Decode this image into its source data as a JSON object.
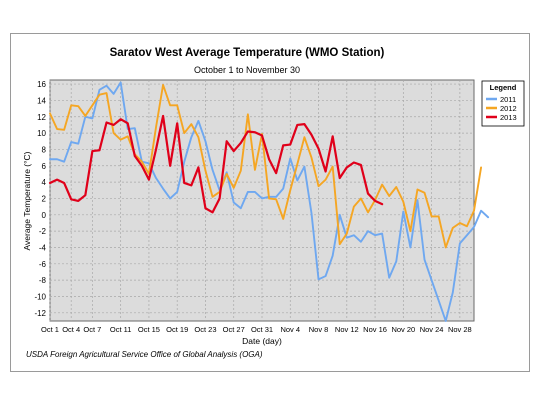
{
  "chart_data": {
    "type": "line",
    "title": "Saratov West Average Temperature (WMO Station)",
    "subtitle": "October 1 to November 30",
    "xlabel": "Date (day)",
    "ylabel": "Average Temperature (°C)",
    "ylim": [
      -13,
      16.5
    ],
    "yticks": [
      16,
      14,
      12,
      10,
      8,
      6,
      4,
      2,
      0,
      -2,
      -4,
      -6,
      -8,
      -10,
      -12
    ],
    "xticks": [
      "Oct 1",
      "Oct 4",
      "Oct 7",
      "Oct 11",
      "Oct 15",
      "Oct 19",
      "Oct 23",
      "Oct 27",
      "Oct 31",
      "Nov 4",
      "Nov 8",
      "Nov 12",
      "Nov 16",
      "Nov 20",
      "Nov 24",
      "Nov 28"
    ],
    "x_tick_day_index": [
      1,
      4,
      7,
      11,
      15,
      19,
      23,
      27,
      31,
      35,
      39,
      43,
      47,
      51,
      55,
      59
    ],
    "x_range_days": [
      1,
      61
    ],
    "grid": true,
    "legend": {
      "title": "Legend",
      "placement": "right"
    },
    "series": [
      {
        "name": "2011",
        "color": "#6fa8f0",
        "values": [
          6.8,
          6.8,
          6.5,
          8.9,
          8.7,
          12.0,
          11.8,
          15.3,
          15.8,
          14.8,
          16.2,
          10.5,
          10.6,
          6.5,
          6.3,
          4.5,
          3.2,
          2.0,
          2.8,
          6.5,
          9.5,
          11.5,
          9.0,
          5.5,
          3.0,
          5.2,
          1.5,
          0.8,
          2.8,
          2.8,
          2.0,
          2.2,
          2.2,
          3.2,
          6.9,
          4.2,
          5.9,
          0.2,
          -7.9,
          -7.5,
          -5.0,
          0.0,
          -2.8,
          -2.5,
          -3.3,
          -2.0,
          -2.5,
          -2.3,
          -7.7,
          -5.7,
          0.4,
          -4.0,
          1.8,
          -5.5,
          -8.0,
          -10.5,
          -13.0,
          -9.5,
          -3.5,
          -2.5,
          -1.5,
          0.5,
          -0.3
        ]
      },
      {
        "name": "2012",
        "color": "#f5a623",
        "values": [
          12.4,
          10.5,
          10.4,
          13.4,
          13.3,
          12.1,
          13.4,
          14.7,
          14.9,
          10.0,
          9.2,
          9.6,
          7.4,
          6.5,
          5.0,
          10.7,
          15.9,
          13.4,
          13.4,
          10.0,
          11.1,
          9.5,
          5.4,
          2.2,
          2.8,
          5.0,
          3.3,
          5.4,
          12.3,
          5.5,
          9.9,
          2.0,
          1.9,
          -0.5,
          3.0,
          6.2,
          9.5,
          7.0,
          3.5,
          4.3,
          5.9,
          -3.6,
          -2.3,
          1.0,
          2.0,
          0.3,
          1.8,
          3.7,
          2.3,
          3.4,
          1.6,
          -2.0,
          3.1,
          2.7,
          -0.2,
          -0.2,
          -4.0,
          -1.6,
          -1.0,
          -1.4,
          0.5,
          5.8
        ]
      },
      {
        "name": "2013",
        "color": "#e0001a",
        "values": [
          3.9,
          4.3,
          3.9,
          1.9,
          1.7,
          2.4,
          7.8,
          7.9,
          11.3,
          11.0,
          11.7,
          11.2,
          7.2,
          6.0,
          4.3,
          8.0,
          12.1,
          6.0,
          11.2,
          3.9,
          3.6,
          5.8,
          0.8,
          0.3,
          2.0,
          9.0,
          7.8,
          8.8,
          10.2,
          10.1,
          9.7,
          6.8,
          5.1,
          8.5,
          8.6,
          11.0,
          11.1,
          9.8,
          8.1,
          5.3,
          9.6,
          4.5,
          5.8,
          6.4,
          6.1,
          2.6,
          1.7,
          1.3
        ]
      }
    ]
  },
  "footer": {
    "source": "USDA Foreign Agricultural Service Office of Global Analysis (OGA)"
  }
}
